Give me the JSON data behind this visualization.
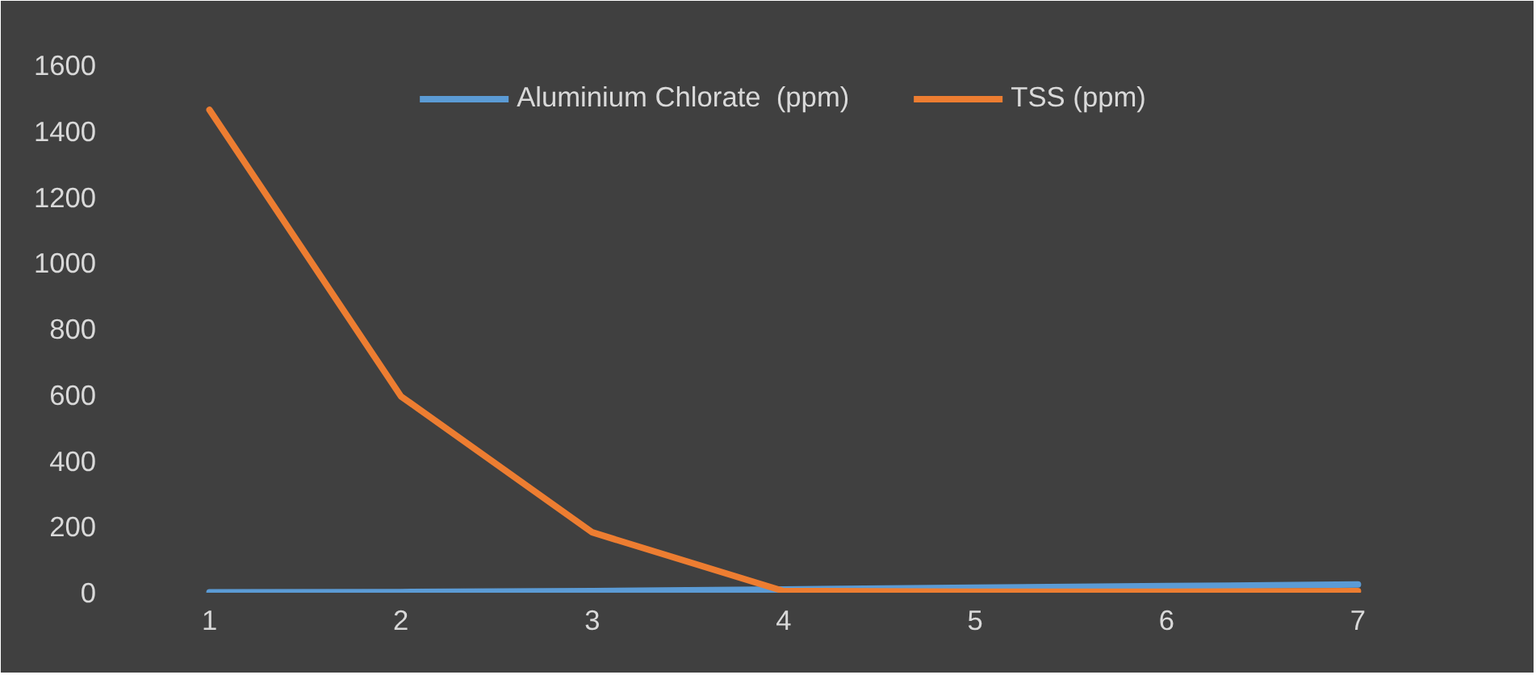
{
  "chart_data": {
    "type": "line",
    "categories": [
      "1",
      "2",
      "3",
      "4",
      "5",
      "6",
      "7"
    ],
    "series": [
      {
        "name": "Aluminium Chlorate  (ppm)",
        "color": "#5b9bd5",
        "values": [
          1,
          2,
          5,
          10,
          15,
          20,
          25
        ]
      },
      {
        "name": "TSS (ppm)",
        "color": "#ed7d31",
        "values": [
          1465,
          596,
          183,
          5,
          3,
          3,
          5
        ]
      }
    ],
    "ylim": [
      0,
      1600
    ],
    "yticks": [
      0,
      200,
      400,
      600,
      800,
      1000,
      1200,
      1400,
      1600
    ],
    "grid": false,
    "legend": "top",
    "marker": "none",
    "line_style": "solid"
  }
}
